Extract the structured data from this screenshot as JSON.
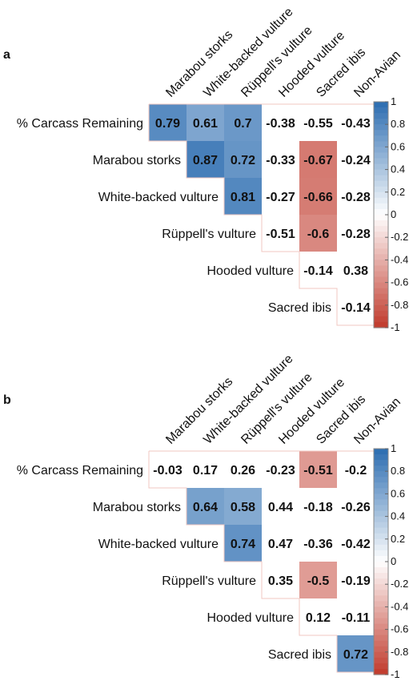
{
  "chart_data": [
    {
      "type": "heatmap",
      "panel_label": "a",
      "rows": [
        "% Carcass Remaining",
        "Marabou storks",
        "White-backed vulture",
        "Rüppell's vulture",
        "Hooded vulture",
        "Sacred ibis"
      ],
      "columns": [
        "Marabou storks",
        "White-backed vulture",
        "Rüppell's vulture",
        "Hooded vulture",
        "Sacred ibis",
        "Non-Avian"
      ],
      "values": [
        [
          0.79,
          0.61,
          0.7,
          -0.38,
          -0.55,
          -0.43
        ],
        [
          null,
          0.87,
          0.72,
          -0.33,
          -0.67,
          -0.24
        ],
        [
          null,
          null,
          0.81,
          -0.27,
          -0.66,
          -0.28
        ],
        [
          null,
          null,
          null,
          -0.51,
          -0.6,
          -0.28
        ],
        [
          null,
          null,
          null,
          null,
          -0.14,
          0.38
        ],
        [
          null,
          null,
          null,
          null,
          null,
          -0.14
        ]
      ],
      "labels": [
        [
          "0.79",
          "0.61",
          "0.7",
          "-0.38",
          "-0.55",
          "-0.43"
        ],
        [
          "",
          "0.87",
          "0.72",
          "-0.33",
          "-0.67",
          "-0.24"
        ],
        [
          "",
          "",
          "0.81",
          "-0.27",
          "-0.66",
          "-0.28"
        ],
        [
          "",
          "",
          "",
          "-0.51",
          "-0.6",
          "-0.28"
        ],
        [
          "",
          "",
          "",
          "",
          "-0.14",
          "0.38"
        ],
        [
          "",
          "",
          "",
          "",
          "",
          "-0.14"
        ]
      ],
      "shaded": [
        [
          true,
          true,
          true,
          false,
          false,
          false
        ],
        [
          false,
          true,
          true,
          false,
          true,
          false
        ],
        [
          false,
          false,
          true,
          false,
          true,
          false
        ],
        [
          false,
          false,
          false,
          false,
          true,
          false
        ],
        [
          false,
          false,
          false,
          false,
          false,
          false
        ],
        [
          false,
          false,
          false,
          false,
          false,
          false
        ]
      ],
      "color_scale": {
        "min": -1,
        "max": 1,
        "ticks": [
          "-1",
          "-0.8",
          "-0.6",
          "-0.4",
          "-0.2",
          "0",
          "0.2",
          "0.4",
          "0.6",
          "0.8",
          "1"
        ],
        "negative_color": "#c0392b",
        "positive_color": "#2b6cb0",
        "mid_color": "#ffffff"
      }
    },
    {
      "type": "heatmap",
      "panel_label": "b",
      "rows": [
        "% Carcass Remaining",
        "Marabou storks",
        "White-backed vulture",
        "Rüppell's vulture",
        "Hooded vulture",
        "Sacred ibis"
      ],
      "columns": [
        "Marabou storks",
        "White-backed vulture",
        "Rüppell's vulture",
        "Hooded vulture",
        "Sacred ibis",
        "Non-Avian"
      ],
      "values": [
        [
          -0.03,
          0.17,
          0.26,
          -0.23,
          -0.51,
          -0.2
        ],
        [
          null,
          0.64,
          0.58,
          0.44,
          -0.18,
          -0.26
        ],
        [
          null,
          null,
          0.74,
          0.47,
          -0.36,
          -0.42
        ],
        [
          null,
          null,
          null,
          0.35,
          -0.5,
          -0.19
        ],
        [
          null,
          null,
          null,
          null,
          0.12,
          -0.11
        ],
        [
          null,
          null,
          null,
          null,
          null,
          0.72
        ]
      ],
      "labels": [
        [
          "-0.03",
          "0.17",
          "0.26",
          "-0.23",
          "-0.51",
          "-0.2"
        ],
        [
          "",
          "0.64",
          "0.58",
          "0.44",
          "-0.18",
          "-0.26"
        ],
        [
          "",
          "",
          "0.74",
          "0.47",
          "-0.36",
          "-0.42"
        ],
        [
          "",
          "",
          "",
          "0.35",
          "-0.5",
          "-0.19"
        ],
        [
          "",
          "",
          "",
          "",
          "0.12",
          "-0.11"
        ],
        [
          "",
          "",
          "",
          "",
          "",
          "0.72"
        ]
      ],
      "shaded": [
        [
          false,
          false,
          false,
          false,
          true,
          false
        ],
        [
          false,
          true,
          true,
          false,
          false,
          false
        ],
        [
          false,
          false,
          true,
          false,
          false,
          false
        ],
        [
          false,
          false,
          false,
          false,
          true,
          false
        ],
        [
          false,
          false,
          false,
          false,
          false,
          false
        ],
        [
          false,
          false,
          false,
          false,
          false,
          true
        ]
      ],
      "color_scale": {
        "min": -1,
        "max": 1,
        "ticks": [
          "-1",
          "-0.8",
          "-0.6",
          "-0.4",
          "-0.2",
          "0",
          "0.2",
          "0.4",
          "0.6",
          "0.8",
          "1"
        ],
        "negative_color": "#c0392b",
        "positive_color": "#2b6cb0",
        "mid_color": "#ffffff"
      }
    }
  ]
}
